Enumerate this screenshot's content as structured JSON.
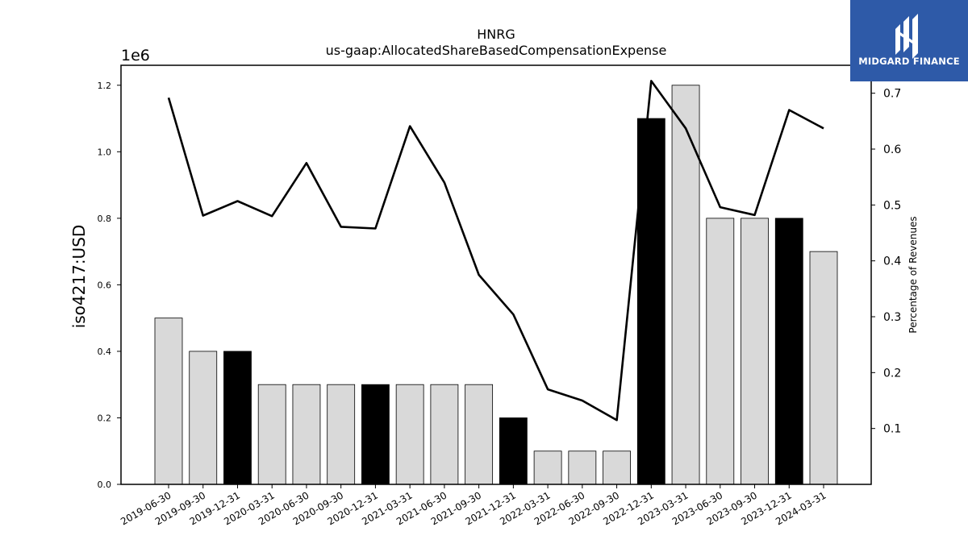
{
  "chart_data": {
    "type": "bar",
    "title": "HNRG",
    "subtitle": "us-gaap:AllocatedShareBasedCompensationExpense",
    "ylabel": "iso4217:USD",
    "y_offset_label": "1e6",
    "y2label": "Percentage of Revenues",
    "ylim": [
      0,
      1260000
    ],
    "y2lim": [
      0,
      0.75
    ],
    "yticks": [
      "0.0",
      "0.2",
      "0.4",
      "0.6",
      "0.8",
      "1.0",
      "1.2"
    ],
    "y2ticks": [
      "0.1",
      "0.2",
      "0.3",
      "0.4",
      "0.5",
      "0.6",
      "0.7"
    ],
    "grid": false,
    "categories": [
      "2019-06-30",
      "2019-09-30",
      "2019-12-31",
      "2020-03-31",
      "2020-06-30",
      "2020-09-30",
      "2020-12-31",
      "2021-03-31",
      "2021-06-30",
      "2021-09-30",
      "2021-12-31",
      "2022-03-31",
      "2022-06-30",
      "2022-09-30",
      "2022-12-31",
      "2023-03-31",
      "2023-06-30",
      "2023-09-30",
      "2023-12-31",
      "2024-03-31"
    ],
    "series": [
      {
        "axis": "left",
        "kind": "bar",
        "values": [
          500000,
          400000,
          400000,
          300000,
          300000,
          300000,
          300000,
          300000,
          300000,
          300000,
          200000,
          100000,
          100000,
          100000,
          1100000,
          1200000,
          800000,
          800000,
          800000,
          700000
        ],
        "colors": [
          "#d9d9d9",
          "#d9d9d9",
          "#000000",
          "#d9d9d9",
          "#d9d9d9",
          "#d9d9d9",
          "#000000",
          "#d9d9d9",
          "#d9d9d9",
          "#d9d9d9",
          "#000000",
          "#d9d9d9",
          "#d9d9d9",
          "#d9d9d9",
          "#000000",
          "#d9d9d9",
          "#d9d9d9",
          "#d9d9d9",
          "#000000",
          "#d9d9d9"
        ]
      },
      {
        "axis": "right",
        "kind": "line",
        "color": "#000000",
        "values": [
          0.692,
          0.481,
          0.507,
          0.48,
          0.575,
          0.461,
          0.458,
          0.641,
          0.54,
          0.375,
          0.304,
          0.17,
          0.15,
          0.115,
          0.722,
          0.637,
          0.496,
          0.482,
          0.67,
          0.637
        ]
      }
    ]
  },
  "logo": {
    "text": "MIDGARD FINANCE",
    "bg": "#2e5aa8"
  }
}
